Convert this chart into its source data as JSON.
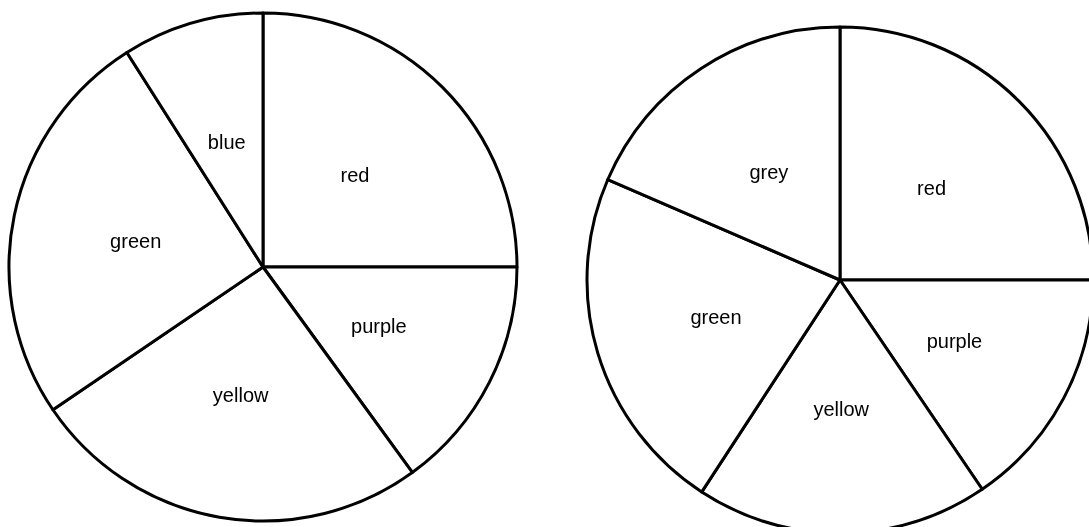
{
  "chart_data": [
    {
      "type": "pie",
      "categories": [
        "red",
        "purple",
        "yellow",
        "green",
        "blue"
      ],
      "values": [
        25,
        15,
        25.5,
        25.5,
        9
      ],
      "colors": [
        "#ffffff",
        "#ffffff",
        "#ffffff",
        "#ffffff",
        "#ffffff"
      ]
    },
    {
      "type": "pie",
      "categories": [
        "red",
        "purple",
        "yellow",
        "green",
        "grey"
      ],
      "values": [
        25,
        15.5,
        18.7,
        22.3,
        18.5
      ],
      "colors": [
        "#ffffff",
        "#ffffff",
        "#ffffff",
        "#ffffff",
        "#ffffff"
      ]
    }
  ]
}
